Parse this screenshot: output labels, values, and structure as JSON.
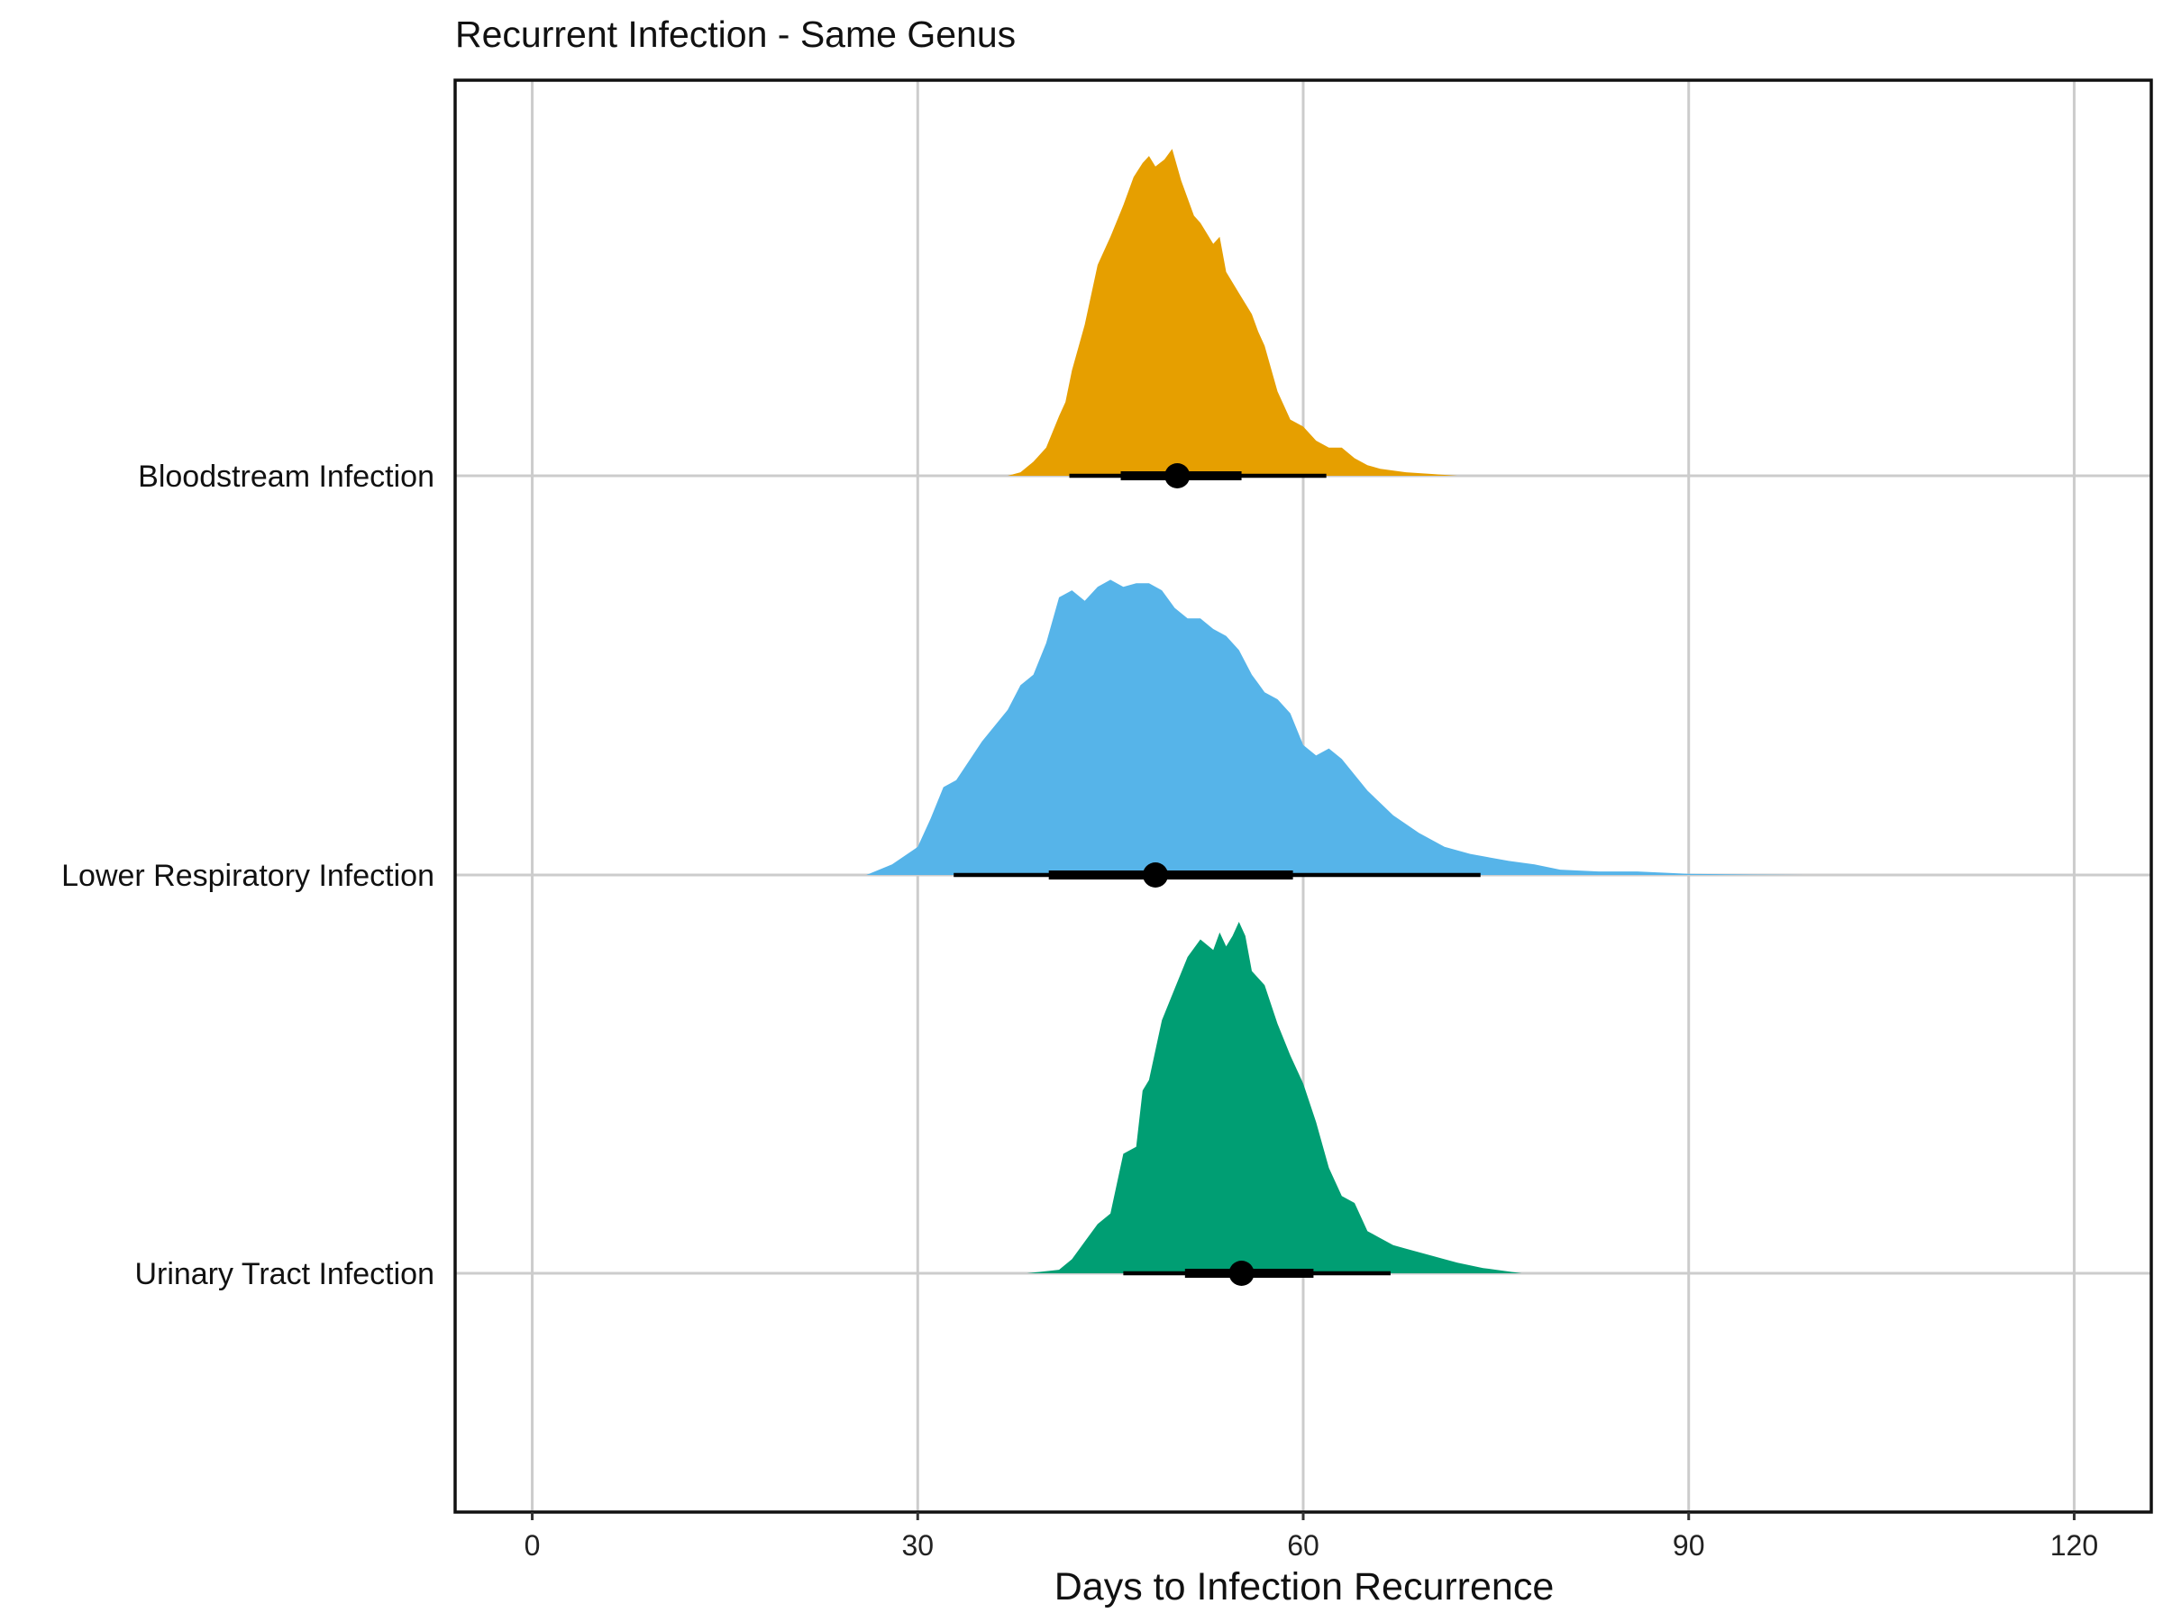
{
  "chart_data": {
    "type": "density_ridge_with_interval",
    "title": "Recurrent Infection - Same Genus",
    "xlabel": "Days to Infection Recurrence",
    "ylabel": "",
    "xlim": [
      -6,
      126
    ],
    "xticks": [
      0,
      30,
      60,
      90,
      120
    ],
    "xtick_labels": [
      "0",
      "30",
      "60",
      "90",
      "120"
    ],
    "grid": true,
    "legend": "none",
    "series": [
      {
        "name": "Bloodstream Infection",
        "color": "#E69F00",
        "density": {
          "x": [
            37,
            38,
            39,
            40,
            41,
            41.5,
            42,
            43,
            44,
            45,
            46,
            46.8,
            47.5,
            48,
            48.5,
            49.2,
            49.8,
            50.5,
            51.5,
            52,
            53,
            53.5,
            54,
            55,
            56,
            56.5,
            57,
            58,
            59,
            60,
            61,
            62,
            63,
            64,
            65,
            66,
            68,
            70,
            72,
            76
          ],
          "y": [
            0.0,
            0.01,
            0.04,
            0.08,
            0.17,
            0.21,
            0.3,
            0.43,
            0.6,
            0.68,
            0.77,
            0.85,
            0.89,
            0.91,
            0.88,
            0.9,
            0.93,
            0.84,
            0.74,
            0.72,
            0.66,
            0.68,
            0.58,
            0.52,
            0.46,
            0.41,
            0.37,
            0.24,
            0.16,
            0.14,
            0.1,
            0.08,
            0.08,
            0.05,
            0.03,
            0.02,
            0.01,
            0.005,
            0.0,
            0.0
          ]
        },
        "point": 50.2,
        "inner_interval": [
          45.8,
          55.2
        ],
        "outer_interval": [
          41.8,
          61.8
        ]
      },
      {
        "name": "Lower Respiratory Infection",
        "color": "#56B4E9",
        "density": {
          "x": [
            26,
            28,
            30,
            31,
            32,
            33,
            35,
            37,
            38,
            39,
            40,
            41,
            42,
            43,
            44,
            45,
            46,
            47,
            48,
            49,
            50,
            51,
            52,
            53,
            54,
            55,
            56,
            57,
            58,
            59,
            60,
            61,
            62,
            63,
            65,
            67,
            69,
            71,
            73,
            76,
            78,
            80,
            83,
            86,
            90,
            95,
            99
          ],
          "y": [
            0.0,
            0.03,
            0.08,
            0.16,
            0.25,
            0.27,
            0.38,
            0.47,
            0.54,
            0.57,
            0.66,
            0.79,
            0.81,
            0.78,
            0.82,
            0.84,
            0.82,
            0.83,
            0.83,
            0.81,
            0.76,
            0.73,
            0.73,
            0.7,
            0.68,
            0.64,
            0.57,
            0.52,
            0.5,
            0.46,
            0.37,
            0.34,
            0.36,
            0.33,
            0.24,
            0.17,
            0.12,
            0.08,
            0.06,
            0.04,
            0.03,
            0.015,
            0.01,
            0.01,
            0.003,
            0.001,
            0.0
          ]
        },
        "point": 48.5,
        "inner_interval": [
          40.2,
          59.2
        ],
        "outer_interval": [
          32.8,
          73.8
        ]
      },
      {
        "name": "Urinary Tract Infection",
        "color": "#009E73",
        "density": {
          "x": [
            38.5,
            41,
            42,
            43,
            44,
            45,
            46,
            47,
            47.5,
            48,
            49,
            50,
            51,
            52,
            53,
            53.5,
            54,
            54.5,
            55,
            55.5,
            56,
            57,
            58,
            59,
            60,
            61,
            62,
            63,
            64,
            65,
            66,
            67,
            68,
            70,
            72,
            74,
            75,
            77
          ],
          "y": [
            0.0,
            0.01,
            0.04,
            0.09,
            0.14,
            0.17,
            0.34,
            0.36,
            0.52,
            0.55,
            0.72,
            0.81,
            0.9,
            0.95,
            0.92,
            0.97,
            0.93,
            0.96,
            1.0,
            0.96,
            0.86,
            0.82,
            0.71,
            0.62,
            0.54,
            0.43,
            0.3,
            0.22,
            0.2,
            0.12,
            0.1,
            0.08,
            0.07,
            0.05,
            0.03,
            0.015,
            0.01,
            0.0
          ]
        },
        "point": 55.2,
        "inner_interval": [
          50.8,
          60.8
        ],
        "outer_interval": [
          46.0,
          66.8
        ]
      }
    ]
  }
}
